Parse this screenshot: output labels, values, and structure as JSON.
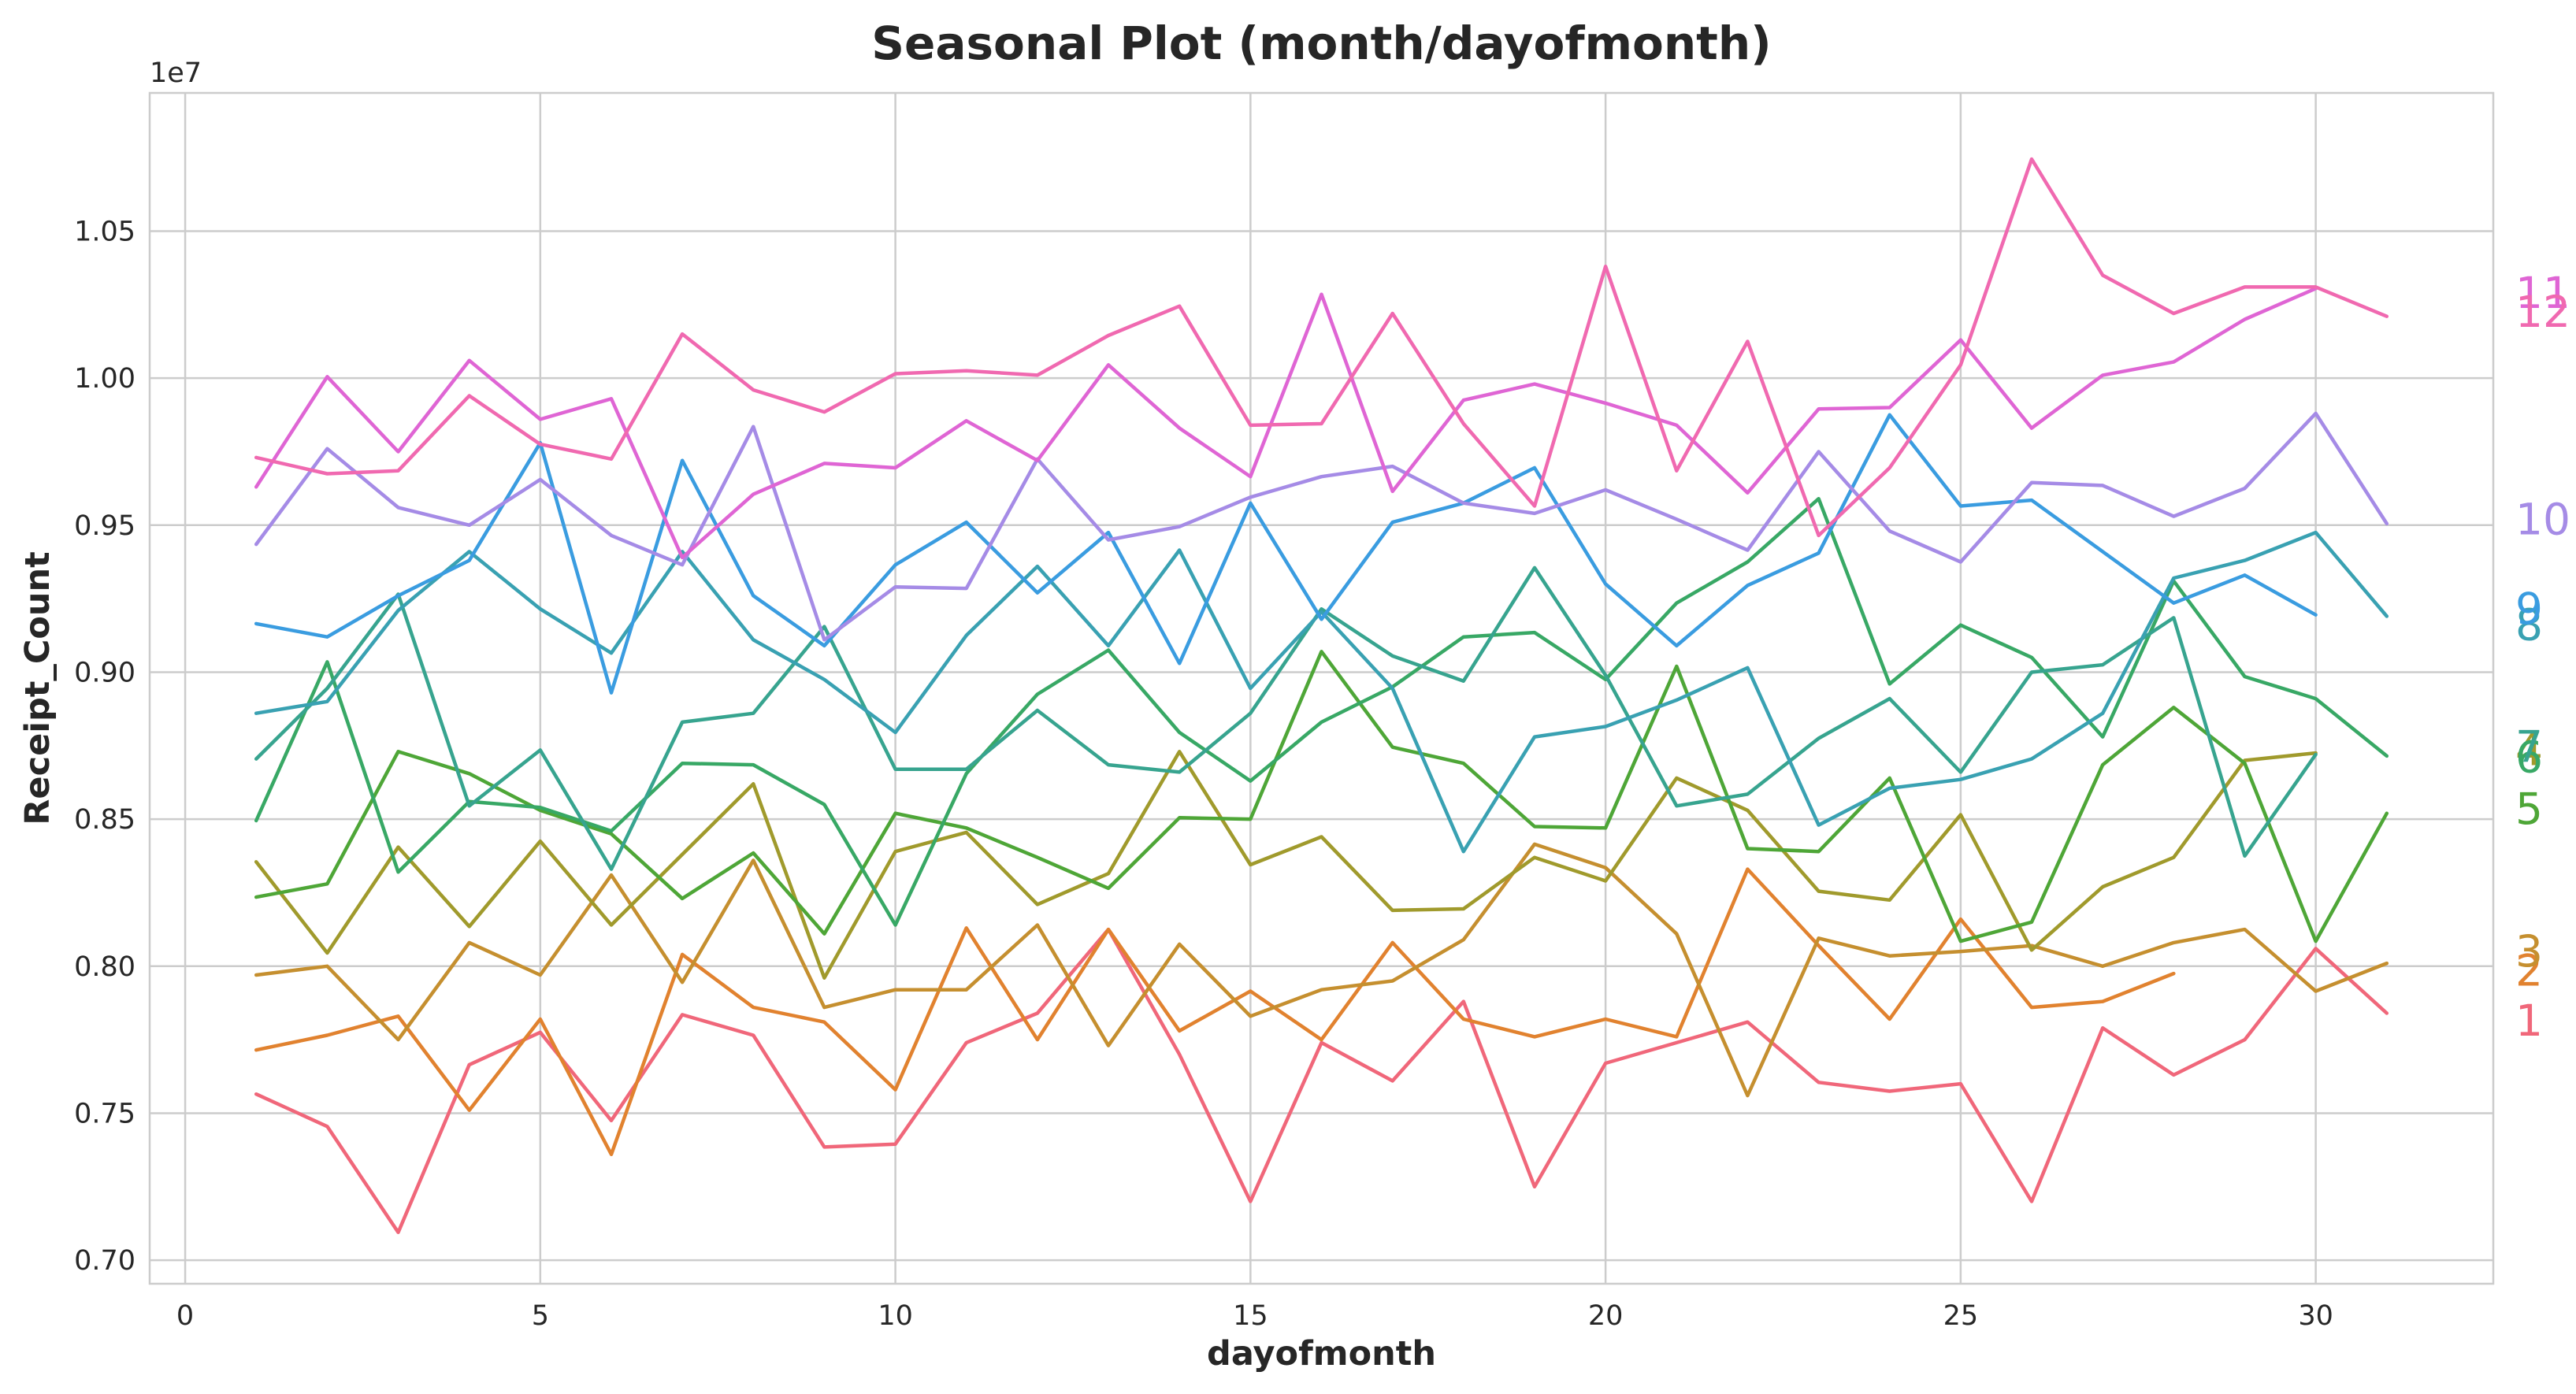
{
  "chart_data": {
    "type": "line",
    "title": "Seasonal Plot (month/dayofmonth)",
    "xlabel": "dayofmonth",
    "ylabel": "Receipt_Count",
    "y_offset_label": "1e7",
    "xlim": [
      -0.5,
      32.5
    ],
    "ylim": [
      0.692,
      1.097
    ],
    "xticks": [
      0,
      5,
      10,
      15,
      20,
      25,
      30
    ],
    "yticks": [
      0.7,
      0.75,
      0.8,
      0.85,
      0.9,
      0.95,
      1.0,
      1.05
    ],
    "ytick_labels": [
      "0.70",
      "0.75",
      "0.80",
      "0.85",
      "0.90",
      "0.95",
      "1.00",
      "1.05"
    ],
    "grid": true,
    "series": [
      {
        "name": "1",
        "color": "#f0677a",
        "label_y": 0.7815,
        "values": [
          0.7565,
          0.7455,
          0.7095,
          0.7665,
          0.7775,
          0.7475,
          0.7835,
          0.7765,
          0.7385,
          0.7395,
          0.774,
          0.784,
          0.8125,
          0.77,
          0.72,
          0.774,
          0.761,
          0.788,
          0.725,
          0.767,
          0.774,
          0.781,
          0.7605,
          0.7575,
          0.76,
          0.72,
          0.779,
          0.763,
          0.775,
          0.806,
          0.784
        ]
      },
      {
        "name": "2",
        "color": "#e1822f",
        "label_y": 0.7985,
        "values": [
          0.7715,
          0.7765,
          0.783,
          0.751,
          0.782,
          0.736,
          0.804,
          0.786,
          0.781,
          0.758,
          0.813,
          0.775,
          0.8125,
          0.778,
          0.7915,
          0.775,
          0.808,
          0.782,
          0.776,
          0.782,
          0.776,
          0.833,
          0.807,
          0.782,
          0.816,
          0.786,
          0.788,
          0.7975
        ]
      },
      {
        "name": "3",
        "color": "#c58f2f",
        "label_y": 0.805,
        "values": [
          0.797,
          0.8,
          0.775,
          0.808,
          0.797,
          0.831,
          0.7945,
          0.836,
          0.786,
          0.792,
          0.792,
          0.814,
          0.773,
          0.8075,
          0.783,
          0.792,
          0.795,
          0.809,
          0.8415,
          0.8335,
          0.811,
          0.756,
          0.8095,
          0.8035,
          0.805,
          0.807,
          0.8,
          0.808,
          0.8125,
          0.7915,
          0.801
        ]
      },
      {
        "name": "4",
        "color": "#a09a2c",
        "label_y": 0.8735,
        "values": [
          0.8355,
          0.8045,
          0.8405,
          0.8135,
          0.8425,
          0.814,
          0.838,
          0.862,
          0.796,
          0.839,
          0.8455,
          0.821,
          0.8315,
          0.873,
          0.8345,
          0.844,
          0.819,
          0.8195,
          0.837,
          0.829,
          0.864,
          0.853,
          0.8255,
          0.8225,
          0.8515,
          0.8055,
          0.827,
          0.837,
          0.87,
          0.8725
        ]
      },
      {
        "name": "5",
        "color": "#4ea637",
        "label_y": 0.8535,
        "values": [
          0.8235,
          0.828,
          0.873,
          0.8655,
          0.853,
          0.845,
          0.823,
          0.8385,
          0.811,
          0.852,
          0.847,
          0.837,
          0.8265,
          0.8505,
          0.85,
          0.907,
          0.8745,
          0.869,
          0.8475,
          0.847,
          0.902,
          0.84,
          0.839,
          0.864,
          0.8085,
          0.815,
          0.8685,
          0.888,
          0.869,
          0.8085,
          0.852
        ]
      },
      {
        "name": "6",
        "color": "#38a865",
        "label_y": 0.871,
        "values": [
          0.8495,
          0.9035,
          0.832,
          0.856,
          0.854,
          0.846,
          0.869,
          0.8685,
          0.855,
          0.814,
          0.8655,
          0.8925,
          0.9075,
          0.8795,
          0.863,
          0.883,
          0.895,
          0.912,
          0.9135,
          0.8975,
          0.9235,
          0.9375,
          0.959,
          0.896,
          0.916,
          0.905,
          0.878,
          0.931,
          0.8985,
          0.891,
          0.8715
        ]
      },
      {
        "name": "7",
        "color": "#37a48f",
        "label_y": 0.8745,
        "values": [
          0.8705,
          0.8945,
          0.9265,
          0.8545,
          0.8735,
          0.833,
          0.883,
          0.886,
          0.9155,
          0.867,
          0.867,
          0.887,
          0.8685,
          0.866,
          0.886,
          0.9215,
          0.9055,
          0.897,
          0.9355,
          0.899,
          0.8545,
          0.8585,
          0.8775,
          0.891,
          0.866,
          0.9,
          0.9025,
          0.9185,
          0.8375,
          0.872
        ]
      },
      {
        "name": "8",
        "color": "#39a1b2",
        "label_y": 0.916,
        "values": [
          0.886,
          0.89,
          0.921,
          0.941,
          0.9215,
          0.9065,
          0.941,
          0.911,
          0.8975,
          0.8795,
          0.9125,
          0.936,
          0.909,
          0.9415,
          0.8945,
          0.9205,
          0.8945,
          0.839,
          0.878,
          0.8815,
          0.8905,
          0.9015,
          0.848,
          0.8605,
          0.8635,
          0.8705,
          0.886,
          0.932,
          0.938,
          0.9475,
          0.919
        ]
      },
      {
        "name": "9",
        "color": "#3a9ce0",
        "label_y": 0.9215,
        "values": [
          0.9165,
          0.912,
          0.926,
          0.938,
          0.978,
          0.893,
          0.972,
          0.926,
          0.909,
          0.9365,
          0.951,
          0.927,
          0.9475,
          0.903,
          0.9575,
          0.918,
          0.951,
          0.9575,
          0.9695,
          0.93,
          0.909,
          0.9295,
          0.9405,
          0.9875,
          0.9565,
          0.9585,
          0.941,
          0.9235,
          0.933,
          0.9195
        ]
      },
      {
        "name": "10",
        "color": "#a58be6",
        "label_y": 0.952,
        "values": [
          0.9435,
          0.976,
          0.956,
          0.95,
          0.9655,
          0.9465,
          0.9365,
          0.9835,
          0.911,
          0.929,
          0.9285,
          0.9725,
          0.945,
          0.9495,
          0.9595,
          0.9665,
          0.97,
          0.9575,
          0.954,
          0.962,
          0.952,
          0.9415,
          0.975,
          0.948,
          0.9375,
          0.9645,
          0.9635,
          0.953,
          0.9625,
          0.988,
          0.9505
        ]
      },
      {
        "name": "11",
        "color": "#df65d4",
        "label_y": 1.029,
        "values": [
          0.963,
          1.0005,
          0.975,
          1.006,
          0.986,
          0.993,
          0.939,
          0.9605,
          0.971,
          0.9695,
          0.9855,
          0.972,
          1.0045,
          0.983,
          0.9665,
          1.0285,
          0.9615,
          0.9925,
          0.998,
          0.9915,
          0.984,
          0.961,
          0.9895,
          0.99,
          1.013,
          0.983,
          1.001,
          1.0055,
          1.02,
          1.0305
        ]
      },
      {
        "name": "12",
        "color": "#f069b0",
        "label_y": 1.0225,
        "values": [
          0.973,
          0.9675,
          0.9685,
          0.994,
          0.9775,
          0.9725,
          1.015,
          0.996,
          0.9885,
          1.0015,
          1.0025,
          1.001,
          1.0145,
          1.0245,
          0.984,
          0.9845,
          1.022,
          0.9845,
          0.9565,
          1.038,
          0.9685,
          1.0125,
          0.9465,
          0.9695,
          1.0045,
          1.0745,
          1.035,
          1.022,
          1.031,
          1.031,
          1.021
        ]
      }
    ]
  }
}
